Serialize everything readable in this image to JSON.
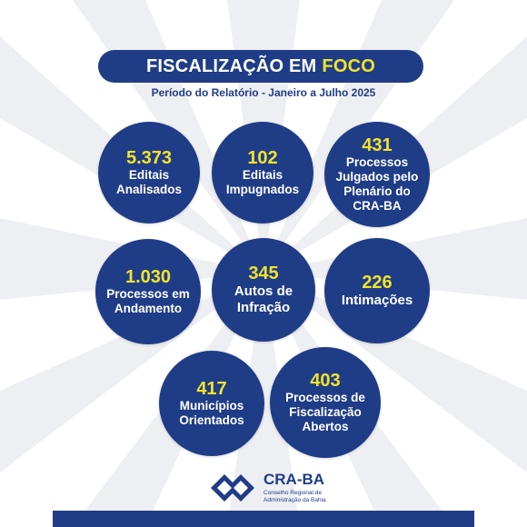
{
  "header": {
    "title_main": "FISCALIZAÇÃO EM",
    "title_accent": "FOCO",
    "subtitle": "Período do Relatório - Janeiro a Julho 2025"
  },
  "stats": [
    {
      "value": "5.373",
      "label": "Editais\nAnalisados"
    },
    {
      "value": "102",
      "label": "Editais\nImpugnados"
    },
    {
      "value": "431",
      "label": "Processos\nJulgados pelo\nPlenário do\nCRA-BA"
    },
    {
      "value": "1.030",
      "label": "Processos em\nAndamento"
    },
    {
      "value": "345",
      "label": "Autos de\nInfração"
    },
    {
      "value": "226",
      "label": "Intimações"
    },
    {
      "value": "417",
      "label": "Municípios\nOrientados"
    },
    {
      "value": "403",
      "label": "Processos de\nFiscalização\nAbertos"
    }
  ],
  "logo": {
    "name": "CRA-BA",
    "subtitle": "Conselho Regional de\nAdministração da Bahia"
  },
  "colors": {
    "primary": "#1f3c87",
    "accent": "#f2e32b",
    "background": "#ffffff"
  }
}
